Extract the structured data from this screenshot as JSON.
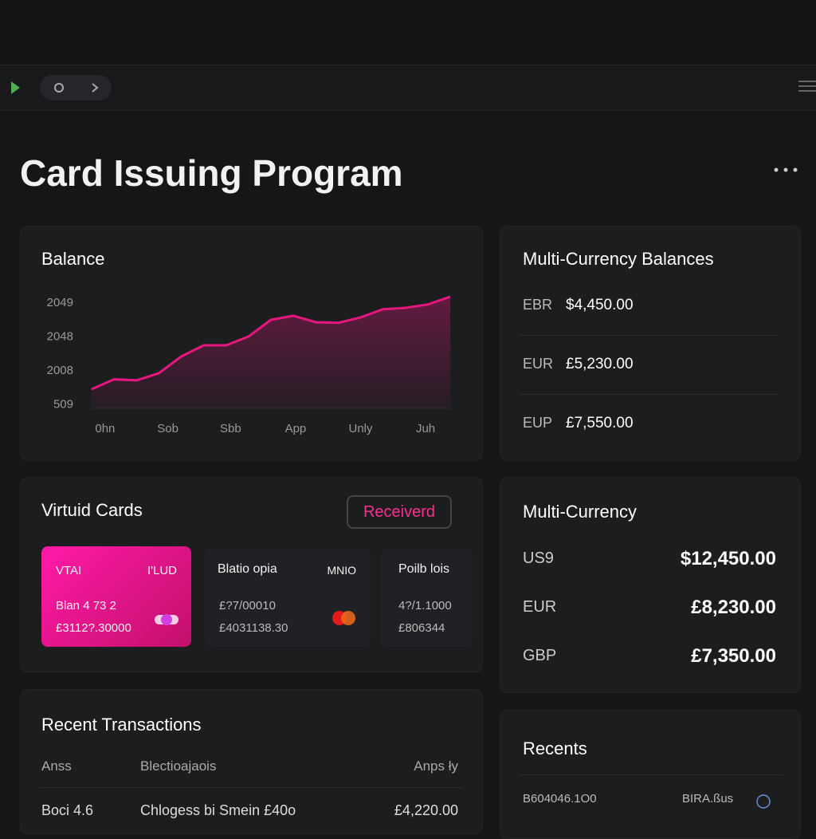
{
  "title": "Card Issuing Program",
  "chart_data": {
    "type": "line",
    "title": "Balance",
    "color": "#e8177f",
    "grid": false,
    "x": [
      0,
      1,
      2,
      3,
      4,
      5,
      6,
      7,
      8,
      9,
      10,
      11,
      12,
      13,
      14,
      15,
      16
    ],
    "values": [
      0.44,
      0.73,
      0.7,
      0.91,
      1.4,
      1.73,
      1.73,
      1.99,
      2.48,
      2.6,
      2.41,
      2.39,
      2.55,
      2.79,
      2.83,
      2.93,
      3.16
    ],
    "xlim": [
      0,
      16
    ],
    "xticks": [
      {
        "value": 0.6,
        "label": "0hn"
      },
      {
        "value": 3.4,
        "label": "Sob"
      },
      {
        "value": 6.2,
        "label": "Sbb"
      },
      {
        "value": 9.1,
        "label": "App"
      },
      {
        "value": 12,
        "label": "Unly"
      },
      {
        "value": 14.9,
        "label": "Juh"
      }
    ],
    "ylim": [
      -0.1,
      3.3
    ],
    "yticks": [
      {
        "value": 0,
        "label": "509"
      },
      {
        "value": 1,
        "label": "2008"
      },
      {
        "value": 2,
        "label": "2048"
      },
      {
        "value": 3,
        "label": "2049"
      }
    ]
  },
  "currency_balances": {
    "title": "Multi-Currency Balances",
    "rows": [
      [
        "EBR",
        "$4,450.00"
      ],
      [
        "EUR",
        "£5,230.00"
      ],
      [
        "EUP",
        "£7,550.00"
      ]
    ]
  },
  "virtual_cards": {
    "title": "Virtuid Cards",
    "button": "Receiverd",
    "cards": [
      {
        "name": "VTAI",
        "tag": "I'LUD",
        "line1": "Blan 4 73 2",
        "line2": "£3112?.30000"
      },
      {
        "name": "Blatio opia",
        "tag": "MNIO",
        "line1": "£?7/00010",
        "line2": "£4031138.30"
      },
      {
        "name": "Poilb lois",
        "line1": "4?/1.1000",
        "line2": "£806344"
      }
    ]
  },
  "multi_currency": {
    "title": "Multi-Currency",
    "rows": [
      [
        "US9",
        "$12,450.00"
      ],
      [
        "EUR",
        "£8,230.00"
      ],
      [
        "GBP",
        "£7,350.00"
      ]
    ]
  },
  "recent_transactions": {
    "title": "Recent Transactions",
    "headers": [
      "Anss",
      "Blectioajaois",
      "Anps ły"
    ],
    "rows": [
      [
        "Boci 4.6",
        "Chlogess bi Smein £40o",
        "£4,220.00"
      ]
    ]
  },
  "recents": {
    "title": "Recents",
    "rows": [
      [
        "B604046.1O0",
        "BIRA.ßus"
      ]
    ]
  }
}
